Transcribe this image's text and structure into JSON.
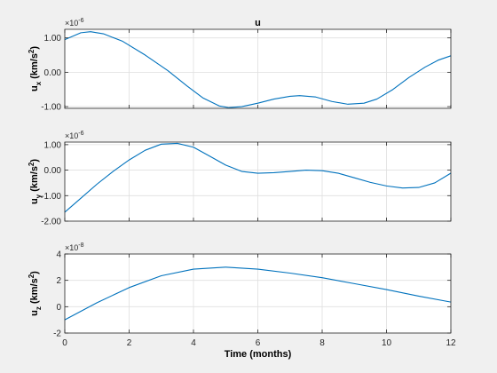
{
  "figure": {
    "title": "u",
    "xlabel": "Time (months)",
    "background": "#f0f0f0",
    "axes_background": "#ffffff",
    "line_color": "#0072bd",
    "grid_color": "#dfdfdf",
    "axis_color": "#262626"
  },
  "chart_data": [
    {
      "type": "line",
      "title": "u",
      "xlabel": "",
      "ylabel_main": "u",
      "ylabel_sub": "x",
      "ylabel_unit": " (km/s",
      "ylabel_sup": "2",
      "ylabel_close": ")",
      "exponent_base": "×10",
      "exponent_power": "-6",
      "xlim": [
        0,
        12
      ],
      "ylim": [
        -1.05,
        1.25
      ],
      "grid": true,
      "xticks": [
        0,
        2,
        4,
        6,
        8,
        10,
        12
      ],
      "yticks": [
        -1,
        0,
        1
      ],
      "ytick_labels": [
        "-1.00",
        "0.00",
        "1.00"
      ],
      "xtick_labels_visible": false,
      "series": [
        {
          "x": [
            0,
            0.5,
            0.8,
            1.2,
            1.8,
            2.5,
            3.2,
            3.8,
            4.3,
            4.8,
            5.1,
            5.5,
            6,
            6.5,
            7,
            7.3,
            7.8,
            8.3,
            8.8,
            9.3,
            9.7,
            10.2,
            10.7,
            11.2,
            11.6,
            12
          ],
          "y": [
            0.95,
            1.15,
            1.18,
            1.12,
            0.9,
            0.5,
            0.05,
            -0.4,
            -0.75,
            -0.98,
            -1.03,
            -1.0,
            -0.9,
            -0.78,
            -0.7,
            -0.68,
            -0.72,
            -0.85,
            -0.93,
            -0.9,
            -0.78,
            -0.5,
            -0.15,
            0.15,
            0.35,
            0.48
          ]
        }
      ]
    },
    {
      "type": "line",
      "title": "",
      "xlabel": "",
      "ylabel_main": "u",
      "ylabel_sub": "y",
      "ylabel_unit": " (km/s",
      "ylabel_sup": "2",
      "ylabel_close": ")",
      "exponent_base": "×10",
      "exponent_power": "-6",
      "xlim": [
        0,
        12
      ],
      "ylim": [
        -2.0,
        1.1
      ],
      "grid": true,
      "xticks": [
        0,
        2,
        4,
        6,
        8,
        10,
        12
      ],
      "yticks": [
        -2,
        -1,
        0,
        1
      ],
      "ytick_labels": [
        "-2.00",
        "-1.00",
        "0.00",
        "1.00"
      ],
      "xtick_labels_visible": false,
      "series": [
        {
          "x": [
            0,
            0.5,
            1,
            1.5,
            2,
            2.5,
            3,
            3.5,
            4,
            4.5,
            5,
            5.5,
            6,
            6.5,
            7,
            7.5,
            8,
            8.5,
            9,
            9.5,
            10,
            10.5,
            11,
            11.5,
            12
          ],
          "y": [
            -1.65,
            -1.1,
            -0.55,
            -0.05,
            0.4,
            0.78,
            1.02,
            1.05,
            0.9,
            0.55,
            0.2,
            -0.05,
            -0.12,
            -0.1,
            -0.05,
            0.0,
            -0.02,
            -0.12,
            -0.3,
            -0.48,
            -0.62,
            -0.7,
            -0.68,
            -0.5,
            -0.12
          ]
        }
      ]
    },
    {
      "type": "line",
      "title": "",
      "xlabel": "Time (months)",
      "ylabel_main": "u",
      "ylabel_sub": "z",
      "ylabel_unit": " (km/s",
      "ylabel_sup": "2",
      "ylabel_close": ")",
      "exponent_base": "×10",
      "exponent_power": "-8",
      "xlim": [
        0,
        12
      ],
      "ylim": [
        -2,
        4
      ],
      "grid": true,
      "xticks": [
        0,
        2,
        4,
        6,
        8,
        10,
        12
      ],
      "yticks": [
        -2,
        0,
        2,
        4
      ],
      "ytick_labels": [
        "-2",
        "0",
        "2",
        "4"
      ],
      "xtick_labels_visible": true,
      "xtick_labels": [
        "0",
        "2",
        "4",
        "6",
        "8",
        "10",
        "12"
      ],
      "series": [
        {
          "x": [
            0,
            1,
            2,
            3,
            4,
            5,
            6,
            7,
            8,
            9,
            10,
            11,
            12
          ],
          "y": [
            -1.0,
            0.3,
            1.45,
            2.35,
            2.85,
            3.0,
            2.85,
            2.55,
            2.2,
            1.75,
            1.3,
            0.8,
            0.35
          ]
        }
      ]
    }
  ]
}
